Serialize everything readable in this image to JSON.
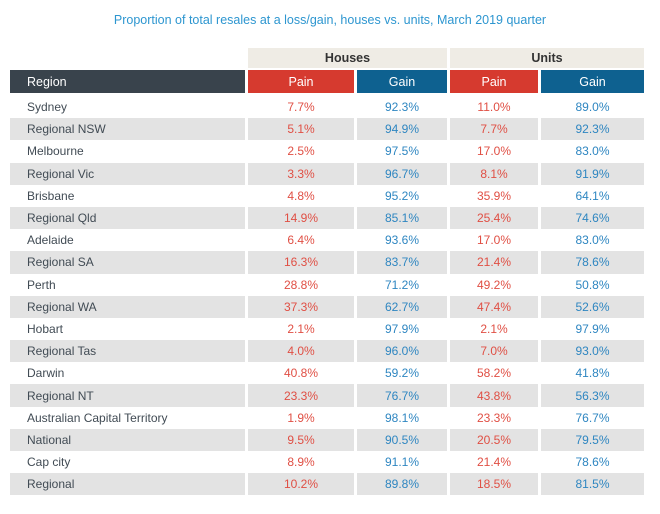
{
  "title": "Proportion of total resales at a loss/gain, houses vs. units, March 2019 quarter",
  "colors": {
    "title-blue": "#2D96D0",
    "header-dark": "#39434C",
    "pain-bg": "#D63A2F",
    "gain-bg": "#0E6190",
    "group-bg": "#EFECE5",
    "stripe": "#E3E3E3",
    "pain-text": "#E04F44",
    "gain-text": "#2E86C1",
    "region-text": "#414B54"
  },
  "chart_data": {
    "type": "table",
    "title": "Proportion of total resales at a loss/gain, houses vs. units, March 2019 quarter",
    "group_headers": [
      "Houses",
      "Units"
    ],
    "column_headers": [
      "Region",
      "Pain",
      "Gain",
      "Pain",
      "Gain"
    ],
    "rows": [
      [
        "Sydney",
        "7.7%",
        "92.3%",
        "11.0%",
        "89.0%"
      ],
      [
        "Regional NSW",
        "5.1%",
        "94.9%",
        "7.7%",
        "92.3%"
      ],
      [
        "Melbourne",
        "2.5%",
        "97.5%",
        "17.0%",
        "83.0%"
      ],
      [
        "Regional Vic",
        "3.3%",
        "96.7%",
        "8.1%",
        "91.9%"
      ],
      [
        "Brisbane",
        "4.8%",
        "95.2%",
        "35.9%",
        "64.1%"
      ],
      [
        "Regional Qld",
        "14.9%",
        "85.1%",
        "25.4%",
        "74.6%"
      ],
      [
        "Adelaide",
        "6.4%",
        "93.6%",
        "17.0%",
        "83.0%"
      ],
      [
        "Regional SA",
        "16.3%",
        "83.7%",
        "21.4%",
        "78.6%"
      ],
      [
        "Perth",
        "28.8%",
        "71.2%",
        "49.2%",
        "50.8%"
      ],
      [
        "Regional WA",
        "37.3%",
        "62.7%",
        "47.4%",
        "52.6%"
      ],
      [
        "Hobart",
        "2.1%",
        "97.9%",
        "2.1%",
        "97.9%"
      ],
      [
        "Regional Tas",
        "4.0%",
        "96.0%",
        "7.0%",
        "93.0%"
      ],
      [
        "Darwin",
        "40.8%",
        "59.2%",
        "58.2%",
        "41.8%"
      ],
      [
        "Regional NT",
        "23.3%",
        "76.7%",
        "43.8%",
        "56.3%"
      ],
      [
        "Australian Capital Territory",
        "1.9%",
        "98.1%",
        "23.3%",
        "76.7%"
      ],
      [
        "National",
        "9.5%",
        "90.5%",
        "20.5%",
        "79.5%"
      ],
      [
        "Cap city",
        "8.9%",
        "91.1%",
        "21.4%",
        "78.6%"
      ],
      [
        "Regional",
        "10.2%",
        "89.8%",
        "18.5%",
        "81.5%"
      ]
    ]
  }
}
